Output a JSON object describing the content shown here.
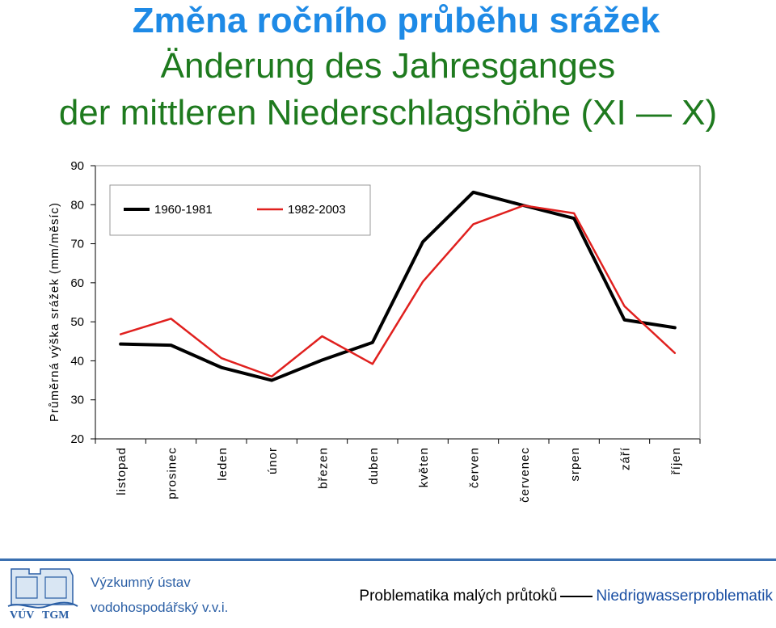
{
  "titles": {
    "line1": "Změna ročního průběhu srážek",
    "line2": "Änderung des Jahresganges",
    "line3": "der mittleren Niederschlagshöhe (XI — X)"
  },
  "colors": {
    "title_cz": "#1e8ae6",
    "title_de": "#1e7a1e",
    "series_1960": "#000000",
    "series_1982": "#e0201e",
    "footer_blue": "#2b5fa5"
  },
  "chart_data": {
    "type": "line",
    "ylabel": "Průměrná výška srážek (mm/měsíc)",
    "xlabel": "",
    "ylim": [
      20,
      90
    ],
    "yticks": [
      20,
      30,
      40,
      50,
      60,
      70,
      80,
      90
    ],
    "grid": false,
    "legend": "top-left inside",
    "categories": [
      "listopad",
      "prosinec",
      "leden",
      "únor",
      "březen",
      "duben",
      "květen",
      "červen",
      "červenec",
      "srpen",
      "září",
      "říjen"
    ],
    "series": [
      {
        "name": "1960-1981",
        "color": "#000000",
        "values": [
          44.3,
          44.0,
          38.3,
          35.0,
          40.2,
          44.7,
          70.5,
          83.2,
          79.8,
          76.5,
          50.5,
          48.5
        ]
      },
      {
        "name": "1982-2003",
        "color": "#e0201e",
        "values": [
          46.8,
          50.8,
          40.7,
          36.0,
          46.3,
          39.2,
          60.3,
          75.0,
          79.8,
          77.8,
          54.0,
          42.0
        ]
      }
    ]
  },
  "footer": {
    "institute_line1": "Výzkumný ústav",
    "institute_line2": "vodohospodářský v.v.i.",
    "logo_text_1": "VÚV",
    "logo_text_2": "TGM",
    "project_cz": "Problematika malých průtoků",
    "project_de": "Niedrigwasserproblematik"
  }
}
